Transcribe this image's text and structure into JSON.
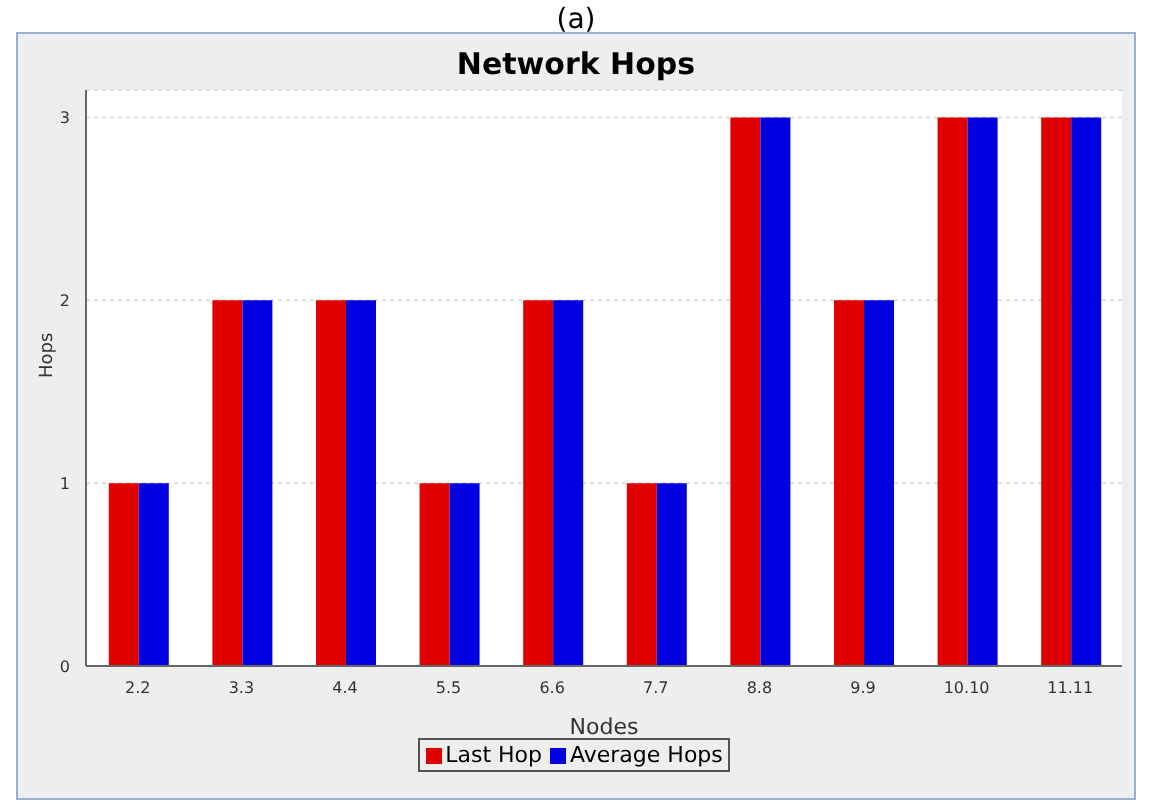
{
  "chart_data": {
    "type": "bar",
    "title": "Network Hops",
    "xlabel": "Nodes",
    "ylabel": "Hops",
    "annotations": [
      "(a)"
    ],
    "categories": [
      "2.2",
      "3.3",
      "4.4",
      "5.5",
      "6.6",
      "7.7",
      "8.8",
      "9.9",
      "10.10",
      "11.11"
    ],
    "series": [
      {
        "name": "Last Hop",
        "color": "#e00000",
        "values": [
          1,
          2,
          2,
          1,
          2,
          1,
          3,
          2,
          3,
          3
        ]
      },
      {
        "name": "Average Hops",
        "color": "#0000e0",
        "values": [
          1,
          2,
          2,
          1,
          2,
          1,
          3,
          2,
          3,
          3
        ]
      }
    ],
    "ylim": [
      0,
      3.15
    ],
    "yticks": [
      0,
      1,
      2,
      3
    ],
    "grid": "y",
    "legend": "bottom"
  }
}
